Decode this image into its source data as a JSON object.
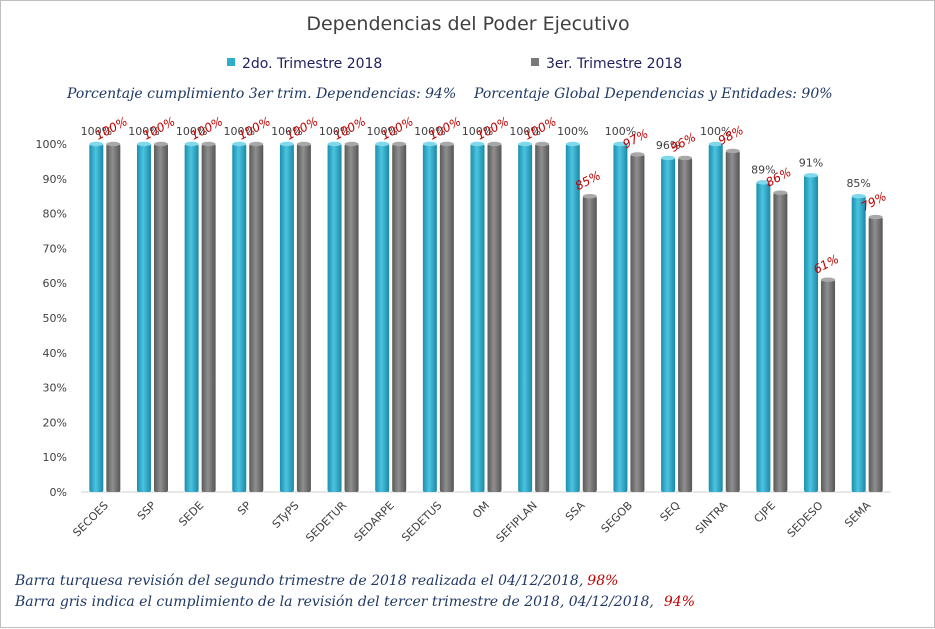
{
  "chart_data": {
    "type": "bar",
    "title": "Dependencias del Poder Ejecutivo",
    "subtitle_left": "Porcentaje cumplimiento 3er trim. Dependencias: 94%",
    "subtitle_right": "Porcentaje Global Dependencias y Entidades: 90%",
    "categories": [
      "SECOES",
      "SSP",
      "SEDE",
      "SP",
      "STyPS",
      "SEDETUR",
      "SEDARPE",
      "SEDETUS",
      "OM",
      "SEFIPLAN",
      "SSA",
      "SEGOB",
      "SEQ",
      "SINTRA",
      "CJPE",
      "SEDESO",
      "SEMA"
    ],
    "series": [
      {
        "name": "2do. Trimestre 2018",
        "values": [
          100,
          100,
          100,
          100,
          100,
          100,
          100,
          100,
          100,
          100,
          100,
          100,
          96,
          100,
          89,
          91,
          85
        ],
        "color": "#2eaecb"
      },
      {
        "name": "3er. Trimestre 2018",
        "values": [
          100,
          100,
          100,
          100,
          100,
          100,
          100,
          100,
          100,
          100,
          85,
          97,
          96,
          98,
          86,
          61,
          79
        ],
        "color": "#7a7a7a"
      }
    ],
    "yticks": [
      "0%",
      "10%",
      "20%",
      "30%",
      "40%",
      "50%",
      "60%",
      "70%",
      "80%",
      "90%",
      "100%"
    ],
    "ylim": [
      0,
      100
    ],
    "grid": false,
    "legend_position": "top",
    "footnote_1": "Barra turquesa revisión del segundo trimestre de 2018 realizada el  04/12/2018,",
    "footnote_1_value": "98%",
    "footnote_2": "Barra gris indica el cumplimiento  de la revisión del tercer trimestre de 2018,  04/12/2018,",
    "footnote_2_value": "94%"
  }
}
